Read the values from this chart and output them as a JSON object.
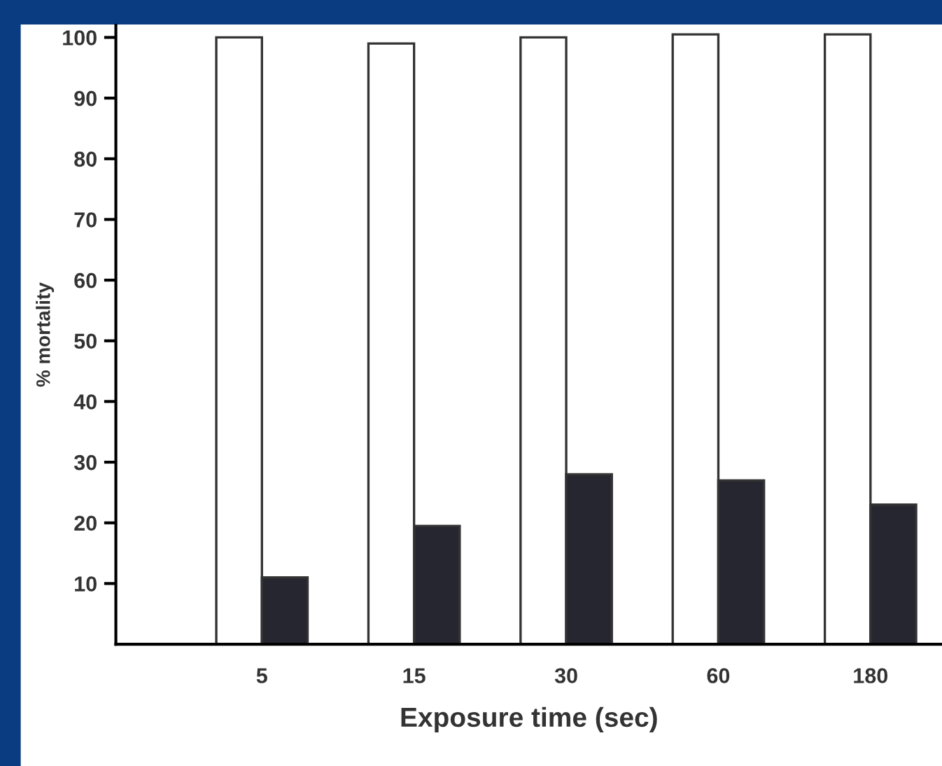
{
  "chart_data": {
    "type": "bar",
    "xlabel": "Exposure time (sec)",
    "ylabel": "% mortality",
    "categories": [
      "5",
      "15",
      "30",
      "60",
      "180"
    ],
    "series": [
      {
        "color": "#ffffff",
        "values": [
          100,
          99,
          100,
          100.5,
          100.5
        ]
      },
      {
        "color": "#262630",
        "values": [
          11,
          19.5,
          28,
          27,
          23
        ]
      }
    ],
    "ylim": [
      0,
      102
    ],
    "yticks": [
      10,
      20,
      30,
      40,
      50,
      60,
      70,
      80,
      90,
      100
    ],
    "grid": false,
    "legend": false
  }
}
